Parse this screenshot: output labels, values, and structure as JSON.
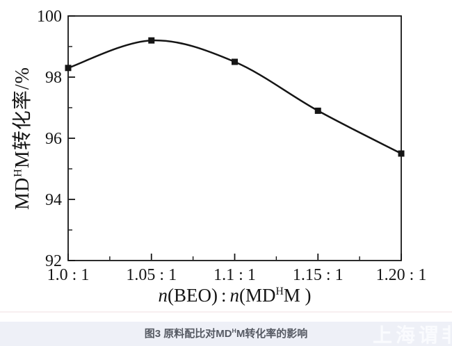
{
  "figure": {
    "caption": {
      "p1": "图3 原料配比对MD",
      "sup": "H",
      "p2": "M转化率的影响"
    },
    "watermark": "上海谓非"
  },
  "chart_data": {
    "type": "line",
    "title": "",
    "categories": [
      "1.0 : 1",
      "1.05 : 1",
      "1.1 : 1",
      "1.15 : 1",
      "1.20 : 1"
    ],
    "x_values": [
      1.0,
      1.05,
      1.1,
      1.15,
      1.2
    ],
    "values": [
      98.3,
      99.2,
      98.5,
      96.9,
      95.5
    ],
    "xlabel": "n(BEO):n(MDHM)",
    "ylabel": "MDHM转化率/%",
    "ylim": [
      92,
      100
    ],
    "y_major_ticks": [
      100,
      98,
      96,
      94,
      92
    ],
    "y_minor_ticks": [
      99,
      97,
      95,
      93
    ],
    "grid": false,
    "legend": "none",
    "line_color": "#151515",
    "marker": "square",
    "ylabel_rich": {
      "p1": "MD",
      "sup": "H",
      "p2": "M转化率/%"
    },
    "xlabel_rich": {
      "n1": "n",
      "p1": "(BEO)",
      "sep": ":",
      "n2": "n",
      "p2": "(MD",
      "sup": "H",
      "p3": "M )"
    }
  }
}
